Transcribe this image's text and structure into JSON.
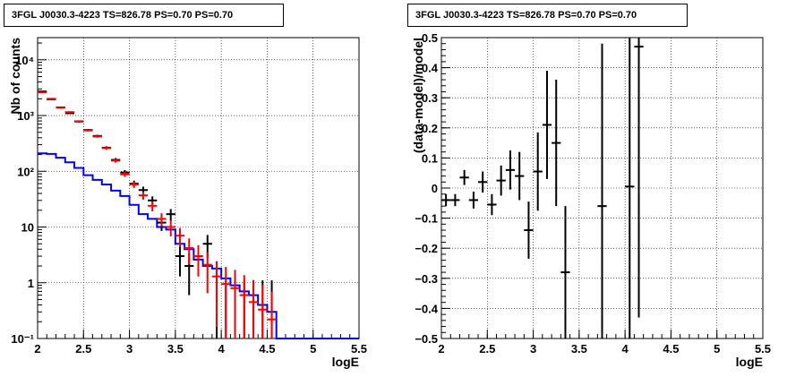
{
  "chart_data": [
    {
      "type": "step",
      "title": "3FGL J0030.3-4223 TS=826.78 PS=0.70 PS=0.70",
      "xlabel": "logE",
      "ylabel": "Nb of counts",
      "xlim": [
        2,
        5.5
      ],
      "ylim": [
        0.1,
        25000
      ],
      "yscale": "log",
      "grid": true,
      "x_ticks": [
        "2",
        "2.5",
        "3",
        "3.5",
        "4",
        "4.5",
        "5",
        "5.5"
      ],
      "y_ticks": [
        "10⁻¹",
        "1",
        "10",
        "10²",
        "10³",
        "10⁴"
      ],
      "colors": {
        "data": "#000000",
        "model_total": "#ff0000",
        "model_source": "#0000ff"
      },
      "bin_width": 0.1,
      "series": [
        {
          "id": "data",
          "x": [
            2.05,
            2.15,
            2.25,
            2.35,
            2.45,
            2.55,
            2.65,
            2.75,
            2.85,
            2.95,
            3.05,
            3.15,
            3.25,
            3.35,
            3.45,
            3.55,
            3.65,
            3.75,
            3.85,
            3.95,
            4.05,
            4.15,
            4.25,
            4.35,
            4.45,
            4.55
          ],
          "y": [
            2700,
            1950,
            1400,
            1100,
            780,
            550,
            430,
            265,
            160,
            95,
            60,
            46,
            30,
            12,
            17,
            3,
            2,
            3,
            5,
            0,
            0,
            0,
            0,
            0,
            0,
            0
          ],
          "err_low": [
            52,
            44,
            37,
            33,
            28,
            23,
            21,
            16,
            13,
            10,
            8,
            7,
            5.5,
            3.5,
            4,
            1.7,
            1.4,
            1.7,
            2.2,
            0,
            0,
            0,
            0,
            0,
            0,
            0
          ],
          "err_high": [
            52,
            44,
            37,
            33,
            28,
            23,
            21,
            16,
            13,
            10,
            8,
            7,
            5.5,
            3.5,
            4,
            1.7,
            1.4,
            1.7,
            2.2,
            1.1,
            1.1,
            1.1,
            1.1,
            1.1,
            1.1,
            1.1
          ]
        },
        {
          "id": "model_total",
          "x": [
            2.05,
            2.15,
            2.25,
            2.35,
            2.45,
            2.55,
            2.65,
            2.75,
            2.85,
            2.95,
            3.05,
            3.15,
            3.25,
            3.35,
            3.45,
            3.55,
            3.65,
            3.75,
            3.85,
            3.95,
            4.05,
            4.15,
            4.25,
            4.35,
            4.45,
            4.55
          ],
          "y": [
            2600,
            2000,
            1380,
            1150,
            790,
            540,
            420,
            260,
            155,
            88,
            58,
            37,
            24,
            14,
            10,
            7,
            4.2,
            3,
            2.1,
            1.3,
            0.95,
            0.8,
            0.6,
            0.45,
            0.33,
            0.22
          ],
          "err_low": [
            51,
            45,
            37,
            34,
            28,
            23,
            20,
            16,
            12,
            9,
            7.6,
            6,
            4.9,
            3.7,
            3.2,
            2.6,
            2.05,
            1.7,
            1.45,
            1.14,
            0.95,
            0.8,
            0.6,
            0.45,
            0.33,
            0.22
          ],
          "err_high": [
            51,
            45,
            37,
            34,
            28,
            23,
            20,
            16,
            12,
            9,
            7.6,
            6,
            4.9,
            3.7,
            3.2,
            2.6,
            2.05,
            1.7,
            1.45,
            1.14,
            0.97,
            0.9,
            0.77,
            0.67,
            0.58,
            0.47
          ]
        },
        {
          "id": "model_source",
          "type": "step",
          "x": [
            2.05,
            2.15,
            2.25,
            2.35,
            2.45,
            2.55,
            2.65,
            2.75,
            2.85,
            2.95,
            3.05,
            3.15,
            3.25,
            3.35,
            3.45,
            3.55,
            3.65,
            3.75,
            3.85,
            3.95,
            4.05,
            4.15,
            4.25,
            4.35,
            4.45,
            4.55,
            4.65,
            4.75,
            4.85,
            4.95,
            5.05,
            5.15,
            5.25,
            5.35,
            5.45
          ],
          "y": [
            210,
            205,
            175,
            145,
            115,
            85,
            70,
            58,
            45,
            36,
            25,
            17,
            14,
            10,
            9,
            5,
            4,
            2.6,
            2,
            1.8,
            1.2,
            0.9,
            0.7,
            0.6,
            0.4,
            0.3,
            0.1,
            0.1,
            0.1,
            0.1,
            0.1,
            0.1,
            0.1,
            0.1,
            0.1
          ]
        }
      ]
    },
    {
      "type": "scatter",
      "title": "3FGL J0030.3-4223 TS=826.78 PS=0.70 PS=0.70",
      "xlabel": "logE",
      "ylabel": "(data-model)/model",
      "xlim": [
        2,
        5.5
      ],
      "ylim": [
        -0.5,
        0.5
      ],
      "grid": true,
      "x_ticks": [
        "2",
        "2.5",
        "3",
        "3.5",
        "4",
        "4.5",
        "5",
        "5.5"
      ],
      "y_ticks": [
        "−0.5",
        "−0.4",
        "−0.3",
        "−0.2",
        "−0.1",
        "0",
        "0.1",
        "0.2",
        "0.3",
        "0.4",
        "0.5"
      ],
      "bin_width": 0.1,
      "color": "#000000",
      "series": [
        {
          "x": [
            2.05,
            2.15,
            2.25,
            2.35,
            2.45,
            2.55,
            2.65,
            2.75,
            2.85,
            2.95,
            3.05,
            3.15,
            3.25,
            3.35,
            3.75,
            4.05,
            4.15
          ],
          "y": [
            -0.04,
            -0.04,
            0.035,
            -0.04,
            0.02,
            -0.055,
            0.025,
            0.06,
            0.04,
            -0.14,
            0.055,
            0.21,
            0.15,
            -0.28,
            -0.06,
            0.005,
            0.47
          ],
          "err": [
            0.02,
            0.02,
            0.025,
            0.028,
            0.035,
            0.035,
            0.05,
            0.065,
            0.08,
            0.095,
            0.13,
            0.18,
            0.21,
            0.22,
            0.54,
            0.9,
            0.9
          ]
        }
      ]
    }
  ]
}
